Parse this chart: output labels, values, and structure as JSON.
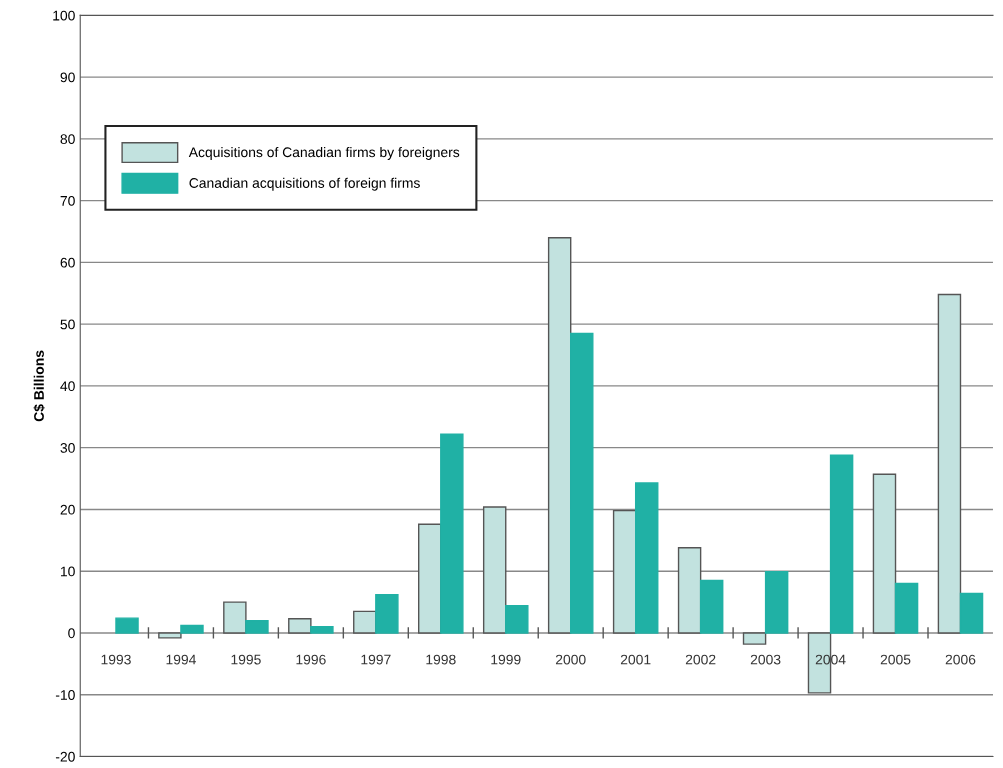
{
  "chart_data": {
    "type": "bar",
    "ylabel": "C$ Billions",
    "categories": [
      "1993",
      "1994",
      "1995",
      "1996",
      "1997",
      "1998",
      "1999",
      "2000",
      "2001",
      "2002",
      "2003",
      "2004",
      "2005",
      "2006"
    ],
    "series": [
      {
        "name": "Acquisitions of Canadian firms by foreigners",
        "color": "#c2e2df",
        "values": [
          null,
          -0.8,
          5,
          2.3,
          3.5,
          17.6,
          20.4,
          64,
          19.8,
          13.8,
          -1.8,
          -9.7,
          25.7,
          54.8
        ]
      },
      {
        "name": "Canadian acquisitions of foreign firms",
        "color": "#20b1a5",
        "values": [
          2.4,
          1.2,
          2,
          1,
          6.2,
          32.2,
          4.4,
          48.5,
          24.3,
          8.5,
          9.9,
          28.8,
          8,
          6.4
        ]
      }
    ],
    "ylim": [
      -20,
      100
    ],
    "yticks": [
      -20,
      -10,
      0,
      10,
      20,
      30,
      40,
      50,
      60,
      70,
      80,
      90,
      100
    ],
    "grid": "y",
    "legend": "top left"
  }
}
